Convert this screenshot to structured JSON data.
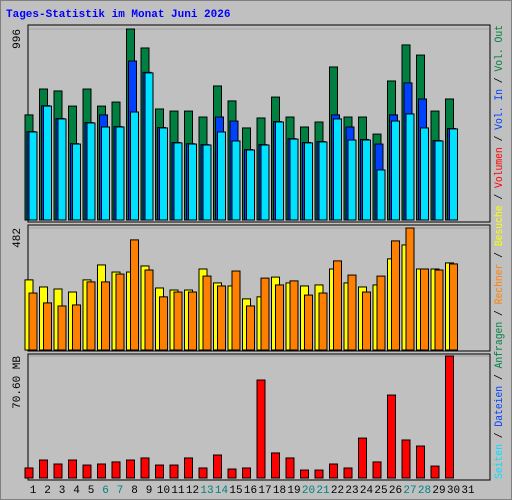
{
  "title": "Tages-Statistik im Monat Juni 2026",
  "legend_separator": " / ",
  "chart_data": [
    {
      "type": "bar",
      "ylim": [
        0,
        996
      ],
      "yticks": [
        996
      ],
      "grid": true,
      "series": [
        {
          "name": "Anfragen",
          "color": "#008040",
          "values": [
            548,
            683,
            673,
            594,
            683,
            594,
            615,
            996,
            897,
            579,
            568,
            568,
            537,
            699,
            621,
            480,
            532,
            641,
            537,
            485,
            511,
            798,
            537,
            537,
            448,
            725,
            913,
            860,
            568,
            631,
            null
          ]
        },
        {
          "name": "Dateien",
          "color": "#0040ff",
          "values": [
            461,
            596,
            529,
            398,
            508,
            548,
            487,
            829,
            770,
            482,
            404,
            398,
            393,
            537,
            516,
            367,
            393,
            513,
            424,
            404,
            409,
            548,
            485,
            420,
            396,
            548,
            715,
            631,
            414,
            477,
            null
          ]
        },
        {
          "name": "Seiten",
          "color": "#00e0ff",
          "values": [
            459,
            594,
            527,
            396,
            506,
            485,
            485,
            563,
            767,
            480,
            402,
            396,
            391,
            459,
            412,
            365,
            391,
            511,
            422,
            402,
            407,
            527,
            417,
            417,
            261,
            516,
            553,
            480,
            412,
            475,
            null
          ]
        }
      ]
    },
    {
      "type": "bar",
      "ylim": [
        0,
        482
      ],
      "yticks": [
        482
      ],
      "grid": true,
      "series": [
        {
          "name": "Besuche",
          "color": "#ffff00",
          "values": [
            277,
            249,
            241,
            229,
            277,
            336,
            308,
            308,
            332,
            245,
            237,
            237,
            320,
            265,
            253,
            202,
            210,
            288,
            265,
            253,
            257,
            320,
            265,
            249,
            257,
            360,
            415,
            320,
            320,
            344,
            null
          ]
        },
        {
          "name": "Rechner",
          "color": "#ff8000",
          "values": [
            225,
            186,
            174,
            178,
            269,
            269,
            300,
            435,
            316,
            210,
            229,
            229,
            292,
            253,
            312,
            174,
            284,
            257,
            273,
            217,
            225,
            352,
            296,
            229,
            292,
            431,
            482,
            320,
            316,
            340,
            null
          ]
        }
      ]
    },
    {
      "type": "bar",
      "ylim": [
        0,
        70.6
      ],
      "yticks": [
        {
          "value": 70.6,
          "label": "70.60 MB"
        }
      ],
      "grid": true,
      "categories": [
        "1",
        "2",
        "3",
        "4",
        "5",
        "6",
        "7",
        "8",
        "9",
        "10",
        "11",
        "12",
        "13",
        "14",
        "15",
        "16",
        "17",
        "18",
        "19",
        "20",
        "21",
        "22",
        "23",
        "24",
        "25",
        "26",
        "27",
        "28",
        "29",
        "30",
        "31"
      ],
      "weekends": [
        5,
        6,
        12,
        13,
        19,
        20,
        26,
        27
      ],
      "weekend_color": "#008080",
      "series": [
        {
          "name": "Vol. Out",
          "color": "#008040",
          "values": [
            null,
            null,
            null,
            null,
            null,
            null,
            null,
            null,
            null,
            null,
            null,
            null,
            null,
            null,
            null,
            null,
            null,
            null,
            null,
            null,
            null,
            null,
            null,
            null,
            null,
            null,
            null,
            null,
            null,
            null,
            null
          ]
        },
        {
          "name": "Vol. In",
          "color": "#0040ff",
          "values": [
            null,
            null,
            null,
            null,
            null,
            null,
            null,
            null,
            null,
            null,
            null,
            null,
            null,
            null,
            null,
            null,
            null,
            null,
            null,
            null,
            null,
            null,
            null,
            null,
            null,
            null,
            null,
            null,
            null,
            null,
            null
          ]
        },
        {
          "name": "Volumen",
          "color": "#ff0000",
          "values": [
            5.8,
            10.4,
            8.1,
            10.4,
            7.5,
            8.1,
            9.3,
            10.4,
            11.6,
            7.5,
            7.5,
            11.6,
            5.8,
            13.3,
            5.2,
            5.8,
            56.7,
            14.5,
            11.6,
            4.6,
            4.6,
            8.1,
            5.8,
            23.1,
            9.3,
            48,
            22,
            18.5,
            6.9,
            70.6,
            null
          ]
        }
      ]
    }
  ]
}
